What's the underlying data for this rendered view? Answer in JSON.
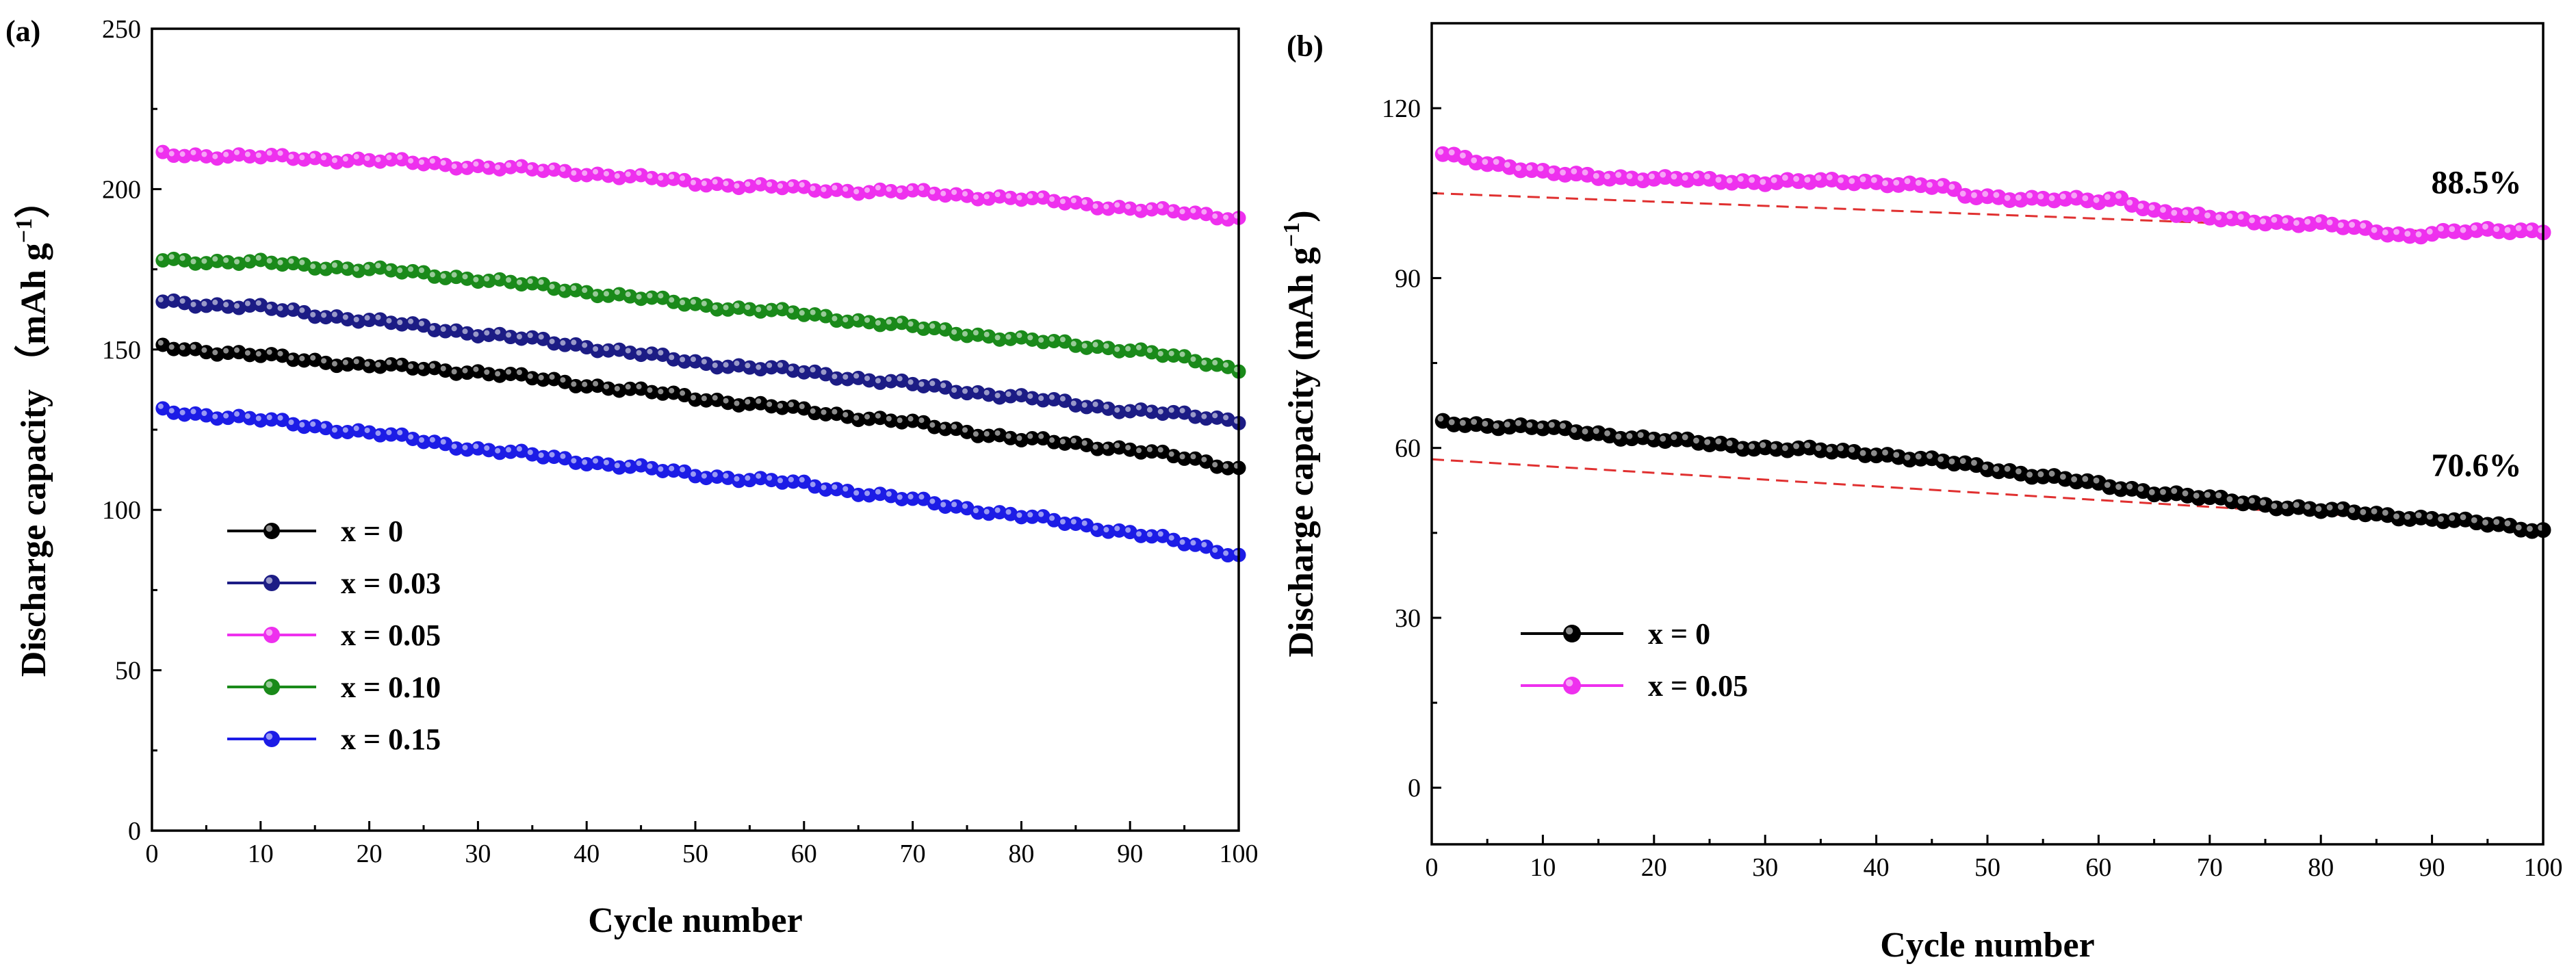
{
  "chart_data": [
    {
      "type": "line",
      "panel_label": "(a)",
      "title": "",
      "xlabel": "Cycle number",
      "ylabel": "Discharge capacity （mAh g",
      "ylabel_sup": "−1",
      "ylabel_close": "）",
      "xlim": [
        0,
        100
      ],
      "ylim": [
        0,
        250
      ],
      "xticks": [
        0,
        10,
        20,
        30,
        40,
        50,
        60,
        70,
        80,
        90,
        100
      ],
      "yticks": [
        0,
        50,
        100,
        150,
        200,
        250
      ],
      "legend_position": "lower-left",
      "series": [
        {
          "name": "x = 0",
          "color": "#000000",
          "points": [
            [
              1,
              151
            ],
            [
              10,
              148
            ],
            [
              20,
              145
            ],
            [
              30,
              143
            ],
            [
              40,
              139
            ],
            [
              50,
              135
            ],
            [
              60,
              131
            ],
            [
              70,
              127
            ],
            [
              80,
              122
            ],
            [
              90,
              119
            ],
            [
              100,
              113
            ]
          ]
        },
        {
          "name": "x = 0.03",
          "color": "#1c1c85",
          "points": [
            [
              1,
              165
            ],
            [
              10,
              163
            ],
            [
              20,
              159
            ],
            [
              30,
              155
            ],
            [
              40,
              151
            ],
            [
              50,
              146
            ],
            [
              60,
              143
            ],
            [
              70,
              139
            ],
            [
              80,
              135
            ],
            [
              90,
              131
            ],
            [
              100,
              128
            ]
          ]
        },
        {
          "name": "x = 0.05",
          "color": "#ee30ee",
          "points": [
            [
              1,
              211
            ],
            [
              10,
              210
            ],
            [
              20,
              209
            ],
            [
              30,
              207
            ],
            [
              40,
              205
            ],
            [
              50,
              202
            ],
            [
              60,
              200
            ],
            [
              70,
              199
            ],
            [
              80,
              197
            ],
            [
              90,
              194
            ],
            [
              100,
              191
            ]
          ]
        },
        {
          "name": "x = 0.10",
          "color": "#1a8a1a",
          "points": [
            [
              1,
              178
            ],
            [
              10,
              177
            ],
            [
              20,
              175
            ],
            [
              30,
              172
            ],
            [
              40,
              168
            ],
            [
              50,
              164
            ],
            [
              60,
              161
            ],
            [
              70,
              157
            ],
            [
              80,
              153
            ],
            [
              90,
              150
            ],
            [
              100,
              144
            ]
          ]
        },
        {
          "name": "x = 0.15",
          "color": "#1c1ce6",
          "points": [
            [
              1,
              131
            ],
            [
              10,
              128
            ],
            [
              20,
              124
            ],
            [
              30,
              119
            ],
            [
              40,
              115
            ],
            [
              50,
              111
            ],
            [
              60,
              108
            ],
            [
              70,
              103
            ],
            [
              80,
              98
            ],
            [
              90,
              93
            ],
            [
              100,
              86
            ]
          ]
        }
      ]
    },
    {
      "type": "line",
      "panel_label": "(b)",
      "title": "",
      "xlabel": "Cycle number",
      "ylabel": "Discharge capacity (mAh g",
      "ylabel_sup": "−1",
      "ylabel_close": ")",
      "xlim": [
        0,
        100
      ],
      "ylim": [
        -10,
        135
      ],
      "xticks": [
        0,
        10,
        20,
        30,
        40,
        50,
        60,
        70,
        80,
        90,
        100
      ],
      "yticks": [
        0,
        30,
        60,
        90,
        120
      ],
      "legend_position": "lower-left",
      "series": [
        {
          "name": "x = 0",
          "color": "#000000",
          "points": [
            [
              1,
              64.5
            ],
            [
              10,
              63.5
            ],
            [
              20,
              61.5
            ],
            [
              30,
              60
            ],
            [
              40,
              59
            ],
            [
              50,
              56.5
            ],
            [
              60,
              53.5
            ],
            [
              70,
              51
            ],
            [
              80,
              49
            ],
            [
              90,
              47.5
            ],
            [
              100,
              45.5
            ]
          ]
        },
        {
          "name": "x = 0.05",
          "color": "#ee30ee",
          "points": [
            [
              1,
              112
            ],
            [
              10,
              108.5
            ],
            [
              20,
              107.5
            ],
            [
              30,
              107
            ],
            [
              40,
              107
            ],
            [
              46,
              106
            ],
            [
              48,
              104.5
            ],
            [
              55,
              104
            ],
            [
              60,
              103.5
            ],
            [
              62,
              104
            ],
            [
              65,
              102
            ],
            [
              70,
              100.5
            ],
            [
              80,
              99.5
            ],
            [
              88,
              97.5
            ],
            [
              90,
              98
            ],
            [
              100,
              98.5
            ]
          ]
        }
      ],
      "trend_lines": [
        {
          "color": "#e03030",
          "x": [
            0,
            100
          ],
          "y": [
            105,
            97.5
          ]
        },
        {
          "color": "#e03030",
          "x": [
            0,
            100
          ],
          "y": [
            58,
            46
          ]
        }
      ],
      "annotations": [
        {
          "text": "88.5%",
          "x": 94,
          "y": 105
        },
        {
          "text": "70.6%",
          "x": 94,
          "y": 55
        }
      ]
    }
  ]
}
